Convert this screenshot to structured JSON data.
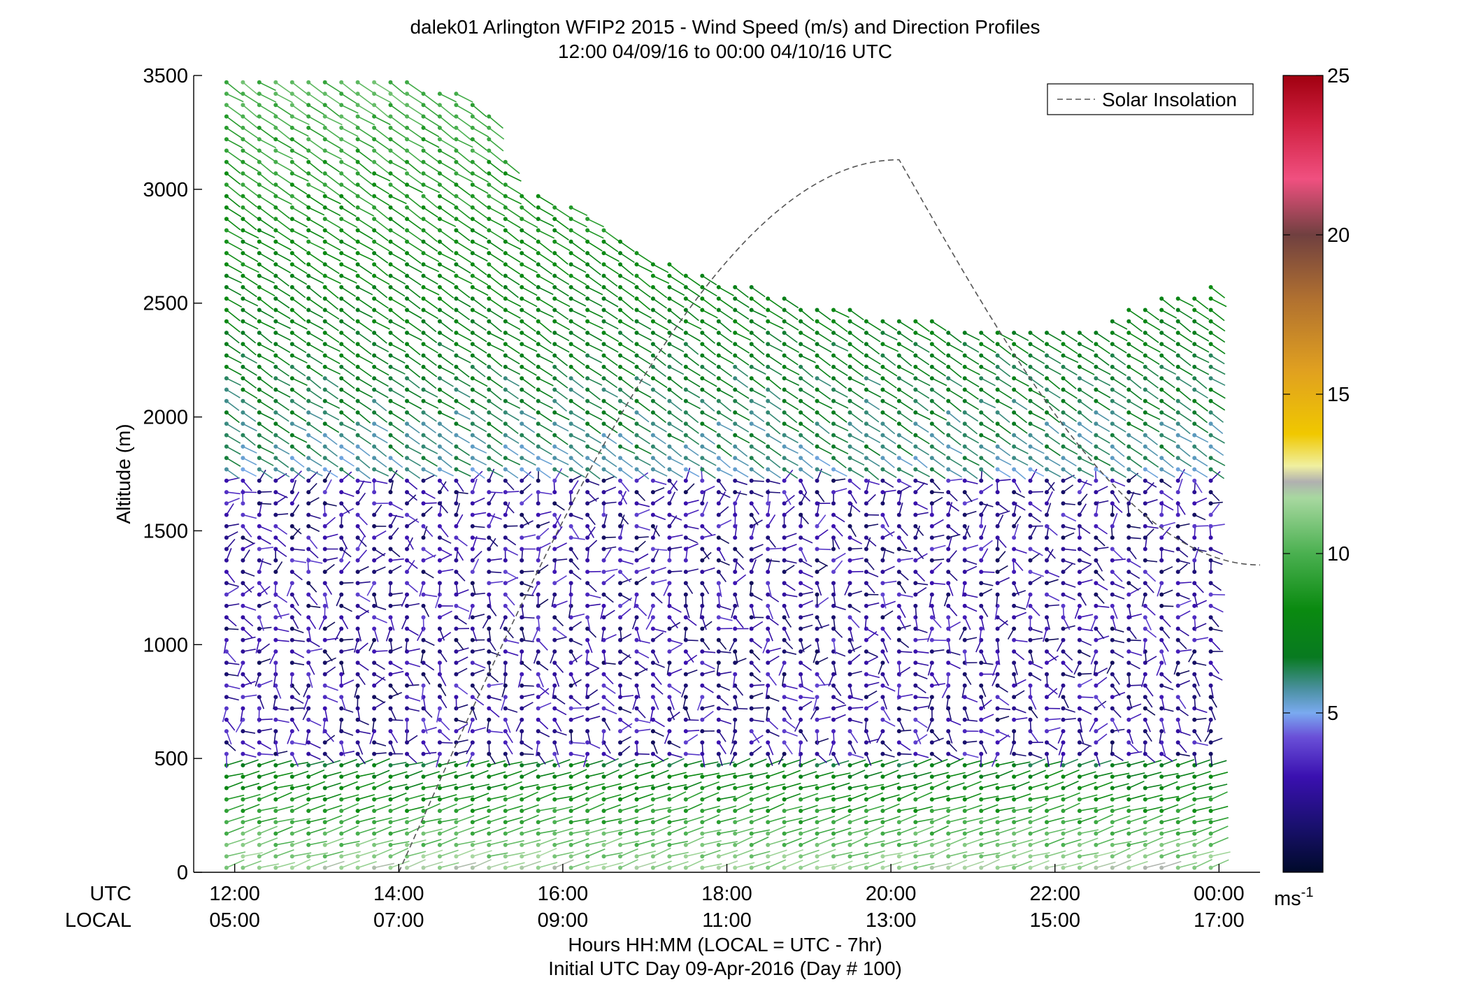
{
  "chart_data": {
    "type": "wind-barb-profile",
    "title": "dalek01 Arlington WFIP2 2015 - Wind Speed (m/s) and Direction Profiles",
    "subtitle": "12:00 04/09/16 to 00:00 04/10/16  UTC",
    "ylabel": "Altitude (m)",
    "xlabel": "Hours HH:MM  (LOCAL = UTC - 7hr)",
    "xlabel2": "Initial UTC Day 09-Apr-2016 (Day # 100)",
    "xrow_utc_label": "UTC",
    "xrow_local_label": "LOCAL",
    "ylim": [
      0,
      3500
    ],
    "xlim_hours": [
      11.5,
      24.5
    ],
    "y_ticks": [
      0,
      500,
      1000,
      1500,
      2000,
      2500,
      3000,
      3500
    ],
    "x_ticks_hours": [
      12,
      14,
      16,
      18,
      20,
      22,
      24
    ],
    "x_tick_labels_utc": [
      "12:00",
      "14:00",
      "16:00",
      "18:00",
      "20:00",
      "22:00",
      "00:00"
    ],
    "x_tick_labels_local": [
      "05:00",
      "07:00",
      "09:00",
      "11:00",
      "13:00",
      "15:00",
      "17:00"
    ],
    "legend": {
      "entries": [
        "Solar Insolation"
      ],
      "placement": "top-right",
      "style": "dashed gray line"
    },
    "colorbar": {
      "min": 0,
      "max": 25,
      "ticks": [
        5,
        10,
        15,
        20,
        25
      ],
      "units_label": "ms",
      "units_exp": "-1"
    },
    "solar_insolation": {
      "rise_hour": 14.0,
      "peak_hour": 20.1,
      "set_hour": 24.5,
      "peak_altitude_m": 3130,
      "note_end_altitude_m": 1350
    },
    "wind_field_description": {
      "surface_layer_m": [
        0,
        500
      ],
      "surface_speed_ms": [
        7,
        12
      ],
      "low_jet_layer_m": [
        500,
        1750
      ],
      "low_speed_ms": [
        0.5,
        4
      ],
      "upper_layer_m": [
        1750,
        3500
      ],
      "upper_speed_ms": [
        4,
        10
      ],
      "data_top_by_time": [
        [
          11.9,
          3500
        ],
        [
          13.9,
          3500
        ],
        [
          15.0,
          3400
        ],
        [
          15.5,
          3000
        ],
        [
          16.0,
          2950
        ],
        [
          17.0,
          2700
        ],
        [
          18.0,
          2600
        ],
        [
          19.0,
          2500
        ],
        [
          20.0,
          2450
        ],
        [
          21.0,
          2400
        ],
        [
          22.0,
          2400
        ],
        [
          22.5,
          2400
        ],
        [
          23.0,
          2500
        ],
        [
          24.0,
          2600
        ]
      ]
    }
  }
}
